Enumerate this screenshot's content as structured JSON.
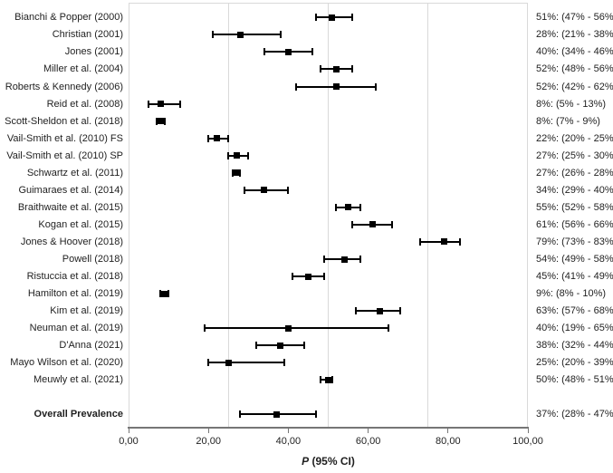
{
  "chart_data": {
    "type": "scatter",
    "subtype": "forest-plot",
    "title": "",
    "xlabel_italic": "P",
    "xlabel_rest": " (95% CI)",
    "xlim": [
      0,
      100
    ],
    "grid": "vertical-only",
    "x_gridlines": [
      25,
      50,
      75
    ],
    "x_ticks": [
      {
        "value": 0,
        "label": "0,00"
      },
      {
        "value": 20,
        "label": "20,00"
      },
      {
        "value": 40,
        "label": "40,00"
      },
      {
        "value": 60,
        "label": "60,00"
      },
      {
        "value": 80,
        "label": "80,00"
      },
      {
        "value": 100,
        "label": "100,00"
      }
    ],
    "studies": [
      {
        "label": "Bianchi & Popper (2000)",
        "mean": 51,
        "lower": 47,
        "upper": 56,
        "ci_label": "51%: (47% - 56%)",
        "bold": false,
        "gap_before": false
      },
      {
        "label": "Christian (2001)",
        "mean": 28,
        "lower": 21,
        "upper": 38,
        "ci_label": "28%: (21% - 38%)",
        "bold": false,
        "gap_before": false
      },
      {
        "label": "Jones (2001)",
        "mean": 40,
        "lower": 34,
        "upper": 46,
        "ci_label": "40%: (34% - 46%)",
        "bold": false,
        "gap_before": false
      },
      {
        "label": "Miller et al. (2004)",
        "mean": 52,
        "lower": 48,
        "upper": 56,
        "ci_label": "52%: (48% - 56%)",
        "bold": false,
        "gap_before": false
      },
      {
        "label": "Roberts & Kennedy (2006)",
        "mean": 52,
        "lower": 42,
        "upper": 62,
        "ci_label": "52%: (42% - 62%)",
        "bold": false,
        "gap_before": false
      },
      {
        "label": "Reid et al. (2008)",
        "mean": 8,
        "lower": 5,
        "upper": 13,
        "ci_label": "8%: (5% - 13%)",
        "bold": false,
        "gap_before": false
      },
      {
        "label": "Scott-Sheldon et al. (2018)",
        "mean": 8,
        "lower": 7,
        "upper": 9,
        "ci_label": "8%: (7% - 9%)",
        "bold": false,
        "gap_before": false
      },
      {
        "label": "Vail-Smith et al. (2010) FS",
        "mean": 22,
        "lower": 20,
        "upper": 25,
        "ci_label": "22%: (20% - 25%)",
        "bold": false,
        "gap_before": false
      },
      {
        "label": "Vail-Smith et al. (2010) SP",
        "mean": 27,
        "lower": 25,
        "upper": 30,
        "ci_label": "27%: (25% - 30%)",
        "bold": false,
        "gap_before": false
      },
      {
        "label": "Schwartz et al. (2011)",
        "mean": 27,
        "lower": 26,
        "upper": 28,
        "ci_label": "27%: (26% - 28%)",
        "bold": false,
        "gap_before": false
      },
      {
        "label": "Guimaraes et al. (2014)",
        "mean": 34,
        "lower": 29,
        "upper": 40,
        "ci_label": "34%: (29% - 40%)",
        "bold": false,
        "gap_before": false
      },
      {
        "label": "Braithwaite et al. (2015)",
        "mean": 55,
        "lower": 52,
        "upper": 58,
        "ci_label": "55%: (52% - 58%)",
        "bold": false,
        "gap_before": false
      },
      {
        "label": "Kogan et al. (2015)",
        "mean": 61,
        "lower": 56,
        "upper": 66,
        "ci_label": "61%: (56% - 66%)",
        "bold": false,
        "gap_before": false
      },
      {
        "label": "Jones & Hoover (2018)",
        "mean": 79,
        "lower": 73,
        "upper": 83,
        "ci_label": "79%: (73% - 83%)",
        "bold": false,
        "gap_before": false
      },
      {
        "label": "Powell (2018)",
        "mean": 54,
        "lower": 49,
        "upper": 58,
        "ci_label": "54%: (49% - 58%)",
        "bold": false,
        "gap_before": false
      },
      {
        "label": "Ristuccia et al. (2018)",
        "mean": 45,
        "lower": 41,
        "upper": 49,
        "ci_label": "45%: (41% - 49%)",
        "bold": false,
        "gap_before": false
      },
      {
        "label": "Hamilton et al. (2019)",
        "mean": 9,
        "lower": 8,
        "upper": 10,
        "ci_label": "9%: (8% - 10%)",
        "bold": false,
        "gap_before": false
      },
      {
        "label": "Kim et al. (2019)",
        "mean": 63,
        "lower": 57,
        "upper": 68,
        "ci_label": "63%: (57% - 68%)",
        "bold": false,
        "gap_before": false
      },
      {
        "label": "Neuman et al. (2019)",
        "mean": 40,
        "lower": 19,
        "upper": 65,
        "ci_label": "40%: (19% - 65%)",
        "bold": false,
        "gap_before": false
      },
      {
        "label": "D'Anna (2021)",
        "mean": 38,
        "lower": 32,
        "upper": 44,
        "ci_label": "38%: (32% - 44%)",
        "bold": false,
        "gap_before": false
      },
      {
        "label": "Mayo Wilson et al. (2020)",
        "mean": 25,
        "lower": 20,
        "upper": 39,
        "ci_label": "25%: (20% - 39%)",
        "bold": false,
        "gap_before": false
      },
      {
        "label": "Meuwly et al. (2021)",
        "mean": 50,
        "lower": 48,
        "upper": 51,
        "ci_label": "50%: (48% - 51%)",
        "bold": false,
        "gap_before": false
      },
      {
        "label": "Overall Prevalence",
        "mean": 37,
        "lower": 28,
        "upper": 47,
        "ci_label": "37%: (28% - 47%)",
        "bold": true,
        "gap_before": true
      }
    ],
    "colors": {
      "marker": "#000000",
      "gridline": "#d9d9d9",
      "plot_border": "#d9d9d9",
      "axis_line": "#767676",
      "text": "#1f1f1f"
    },
    "legend": "none"
  }
}
